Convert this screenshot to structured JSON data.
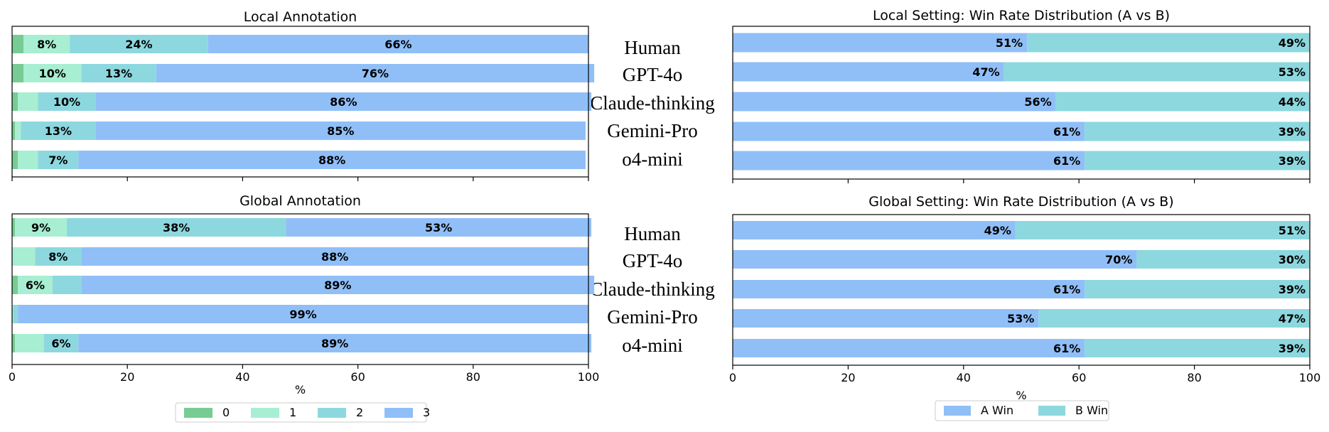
{
  "models": [
    "Human",
    "GPT-4o",
    "Claude-thinking",
    "Gemini-Pro",
    "o4-mini"
  ],
  "colors": {
    "score_0": "#77cc93",
    "score_1": "#a8eed2",
    "score_2": "#8dd8df",
    "score_3": "#90bff8",
    "a_win": "#90bff8",
    "b_win": "#8dd8df"
  },
  "chart_data": [
    {
      "id": "local_annotation",
      "type": "bar",
      "orientation": "horizontal",
      "stacked": true,
      "title": "Local Annotation",
      "categories": [
        "Human",
        "GPT-4o",
        "Claude-thinking",
        "Gemini-Pro",
        "o4-mini"
      ],
      "series": [
        {
          "name": "0",
          "values": [
            2,
            2,
            1,
            0.5,
            1
          ]
        },
        {
          "name": "1",
          "values": [
            8,
            10,
            3.5,
            1,
            3.5
          ]
        },
        {
          "name": "2",
          "values": [
            24,
            13,
            10,
            13,
            7
          ]
        },
        {
          "name": "3",
          "values": [
            66,
            76,
            86,
            85,
            88
          ]
        }
      ],
      "xlim": [
        0,
        100
      ],
      "xticks": [
        "0",
        "20",
        "40",
        "60",
        "80",
        "100"
      ],
      "show_xtick_labels": false,
      "xlabel": "",
      "label_threshold": 5
    },
    {
      "id": "global_annotation",
      "type": "bar",
      "orientation": "horizontal",
      "stacked": true,
      "title": "Global Annotation",
      "categories": [
        "Human",
        "GPT-4o",
        "Claude-thinking",
        "Gemini-Pro",
        "o4-mini"
      ],
      "series": [
        {
          "name": "0",
          "values": [
            0.5,
            0,
            1,
            0,
            0.5
          ]
        },
        {
          "name": "1",
          "values": [
            9,
            4,
            6,
            0.2,
            5
          ]
        },
        {
          "name": "2",
          "values": [
            38,
            8,
            5,
            0.8,
            6
          ]
        },
        {
          "name": "3",
          "values": [
            53,
            88,
            89,
            99,
            89
          ]
        }
      ],
      "xlim": [
        0,
        100
      ],
      "xticks": [
        "0",
        "20",
        "40",
        "60",
        "80",
        "100"
      ],
      "show_xtick_labels": true,
      "xlabel": "%",
      "label_threshold": 5.5,
      "legend": {
        "placement": "bottom-center",
        "entries": [
          "0",
          "1",
          "2",
          "3"
        ]
      }
    },
    {
      "id": "local_win_rate",
      "type": "bar",
      "orientation": "horizontal",
      "stacked": true,
      "title": "Local Setting: Win Rate Distribution (A vs B)",
      "categories": [
        "Human",
        "GPT-4o",
        "Claude-thinking",
        "Gemini-Pro",
        "o4-mini"
      ],
      "series": [
        {
          "name": "A Win",
          "values": [
            51,
            47,
            56,
            61,
            61
          ]
        },
        {
          "name": "B Win",
          "values": [
            49,
            53,
            44,
            39,
            39
          ]
        }
      ],
      "xlim": [
        0,
        100
      ],
      "xticks": [
        "0",
        "20",
        "40",
        "60",
        "80",
        "100"
      ],
      "show_xtick_labels": false,
      "xlabel": ""
    },
    {
      "id": "global_win_rate",
      "type": "bar",
      "orientation": "horizontal",
      "stacked": true,
      "title": "Global Setting: Win Rate Distribution (A vs B)",
      "categories": [
        "Human",
        "GPT-4o",
        "Claude-thinking",
        "Gemini-Pro",
        "o4-mini"
      ],
      "series": [
        {
          "name": "A Win",
          "values": [
            49,
            70,
            61,
            53,
            61
          ]
        },
        {
          "name": "B Win",
          "values": [
            51,
            30,
            39,
            47,
            39
          ]
        }
      ],
      "xlim": [
        0,
        100
      ],
      "xticks": [
        "0",
        "20",
        "40",
        "60",
        "80",
        "100"
      ],
      "show_xtick_labels": true,
      "xlabel": "%",
      "legend": {
        "placement": "bottom-center",
        "entries": [
          "A Win",
          "B Win"
        ]
      }
    }
  ]
}
